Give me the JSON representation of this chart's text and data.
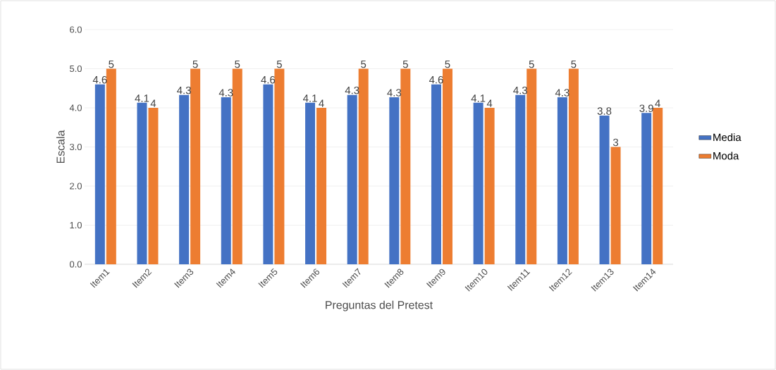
{
  "chart_data": {
    "type": "bar",
    "xlabel": "Preguntas del Pretest",
    "ylabel": "Escala",
    "categories": [
      "Item1",
      "Item2",
      "Item3",
      "Item4",
      "Item5",
      "Item6",
      "Item7",
      "Item8",
      "Item9",
      "Item10",
      "Item11",
      "Item12",
      "Item13",
      "Item14"
    ],
    "series": [
      {
        "name": "Media",
        "color": "#4472c4",
        "values": [
          4.6,
          4.13,
          4.33,
          4.27,
          4.6,
          4.13,
          4.33,
          4.27,
          4.6,
          4.13,
          4.33,
          4.27,
          3.8,
          3.87
        ],
        "value_labels": [
          "4.6",
          "4.1",
          "4.3",
          "4.3",
          "4.6",
          "4.1",
          "4.3",
          "4.3",
          "4.6",
          "4.1",
          "4.3",
          "4.3",
          "3.8",
          "3.9"
        ]
      },
      {
        "name": "Moda",
        "color": "#ed7d31",
        "values": [
          5,
          4,
          5,
          5,
          5,
          4,
          5,
          5,
          5,
          4,
          5,
          5,
          3,
          4
        ],
        "value_labels": [
          "5",
          "4",
          "5",
          "5",
          "5",
          "4",
          "5",
          "5",
          "5",
          "4",
          "5",
          "5",
          "3",
          "4"
        ]
      }
    ],
    "ylim": [
      0,
      6
    ],
    "yticks": [
      {
        "value": 0,
        "label": "0.0"
      },
      {
        "value": 1,
        "label": "1.0"
      },
      {
        "value": 2,
        "label": "2.0"
      },
      {
        "value": 3,
        "label": "3.0"
      },
      {
        "value": 4,
        "label": "4.0"
      },
      {
        "value": 5,
        "label": "5.0"
      },
      {
        "value": 6,
        "label": "6.0"
      }
    ],
    "grid": "y",
    "legend": "right"
  }
}
